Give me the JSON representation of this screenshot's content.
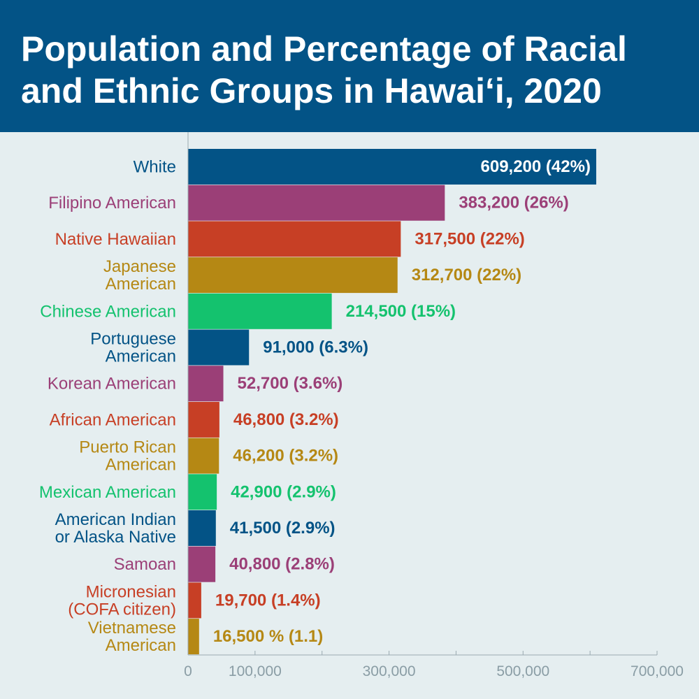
{
  "header": {
    "title_line1": "Population and Percentage of Racial",
    "title_line2": "and Ethnic Groups in Hawai‘i, 2020"
  },
  "chart_data": {
    "type": "bar",
    "orientation": "horizontal",
    "title": "Population and Percentage of Racial and Ethnic Groups in Hawai‘i, 2020",
    "xlabel": "",
    "ylabel": "",
    "xlim": [
      0,
      700000
    ],
    "grid": false,
    "legend": "none",
    "x_ticks": [
      {
        "value": 0,
        "label": "0"
      },
      {
        "value": 100000,
        "label": "100,000"
      },
      {
        "value": 200000,
        "label": ""
      },
      {
        "value": 300000,
        "label": "300,000"
      },
      {
        "value": 400000,
        "label": ""
      },
      {
        "value": 500000,
        "label": "500,000"
      },
      {
        "value": 600000,
        "label": ""
      },
      {
        "value": 700000,
        "label": "700,000"
      }
    ],
    "bars": [
      {
        "name": "white",
        "label": [
          "White"
        ],
        "value": 609200,
        "value_label": "609,200 (42%)",
        "color": "#035386",
        "label_inside": true
      },
      {
        "name": "filipino-american",
        "label": [
          "Filipino American"
        ],
        "value": 383200,
        "value_label": "383,200 (26%)",
        "color": "#9b3f77"
      },
      {
        "name": "native-hawaiian",
        "label": [
          "Native Hawaiian"
        ],
        "value": 317500,
        "value_label": "317,500 (22%)",
        "color": "#c73f25"
      },
      {
        "name": "japanese-american",
        "label": [
          "Japanese",
          "American"
        ],
        "value": 312700,
        "value_label": "312,700 (22%)",
        "color": "#b58814"
      },
      {
        "name": "chinese-american",
        "label": [
          "Chinese American"
        ],
        "value": 214500,
        "value_label": "214,500 (15%)",
        "color": "#14c26e"
      },
      {
        "name": "portuguese-american",
        "label": [
          "Portuguese",
          "American"
        ],
        "value": 91000,
        "value_label": "91,000 (6.3%)",
        "color": "#035386"
      },
      {
        "name": "korean-american",
        "label": [
          "Korean American"
        ],
        "value": 52700,
        "value_label": "52,700 (3.6%)",
        "color": "#9b3f77"
      },
      {
        "name": "african-american",
        "label": [
          "African American"
        ],
        "value": 46800,
        "value_label": "46,800 (3.2%)",
        "color": "#c73f25"
      },
      {
        "name": "puerto-rican-american",
        "label": [
          "Puerto Rican",
          "American"
        ],
        "value": 46200,
        "value_label": "46,200 (3.2%)",
        "color": "#b58814"
      },
      {
        "name": "mexican-american",
        "label": [
          "Mexican American"
        ],
        "value": 42900,
        "value_label": "42,900 (2.9%)",
        "color": "#14c26e"
      },
      {
        "name": "american-indian-or-alaska-native",
        "label": [
          "American Indian",
          "or Alaska Native"
        ],
        "value": 41500,
        "value_label": "41,500 (2.9%)",
        "color": "#035386"
      },
      {
        "name": "samoan",
        "label": [
          "Samoan"
        ],
        "value": 40800,
        "value_label": "40,800 (2.8%)",
        "color": "#9b3f77"
      },
      {
        "name": "micronesian-cofa-citizen",
        "label": [
          "Micronesian",
          "(COFA citizen)"
        ],
        "value": 19700,
        "value_label": "19,700 (1.4%)",
        "color": "#c73f25"
      },
      {
        "name": "vietnamese-american",
        "label": [
          "Vietnamese",
          "American"
        ],
        "value": 16500,
        "value_label": "16,500 % (1.1)",
        "color": "#b58814"
      }
    ],
    "colors": {
      "background": "#e5eef0",
      "header": "#035386",
      "axis": "#9aa9b0",
      "tick_text": "#8a9da5",
      "inside_label": "#ffffff"
    }
  }
}
